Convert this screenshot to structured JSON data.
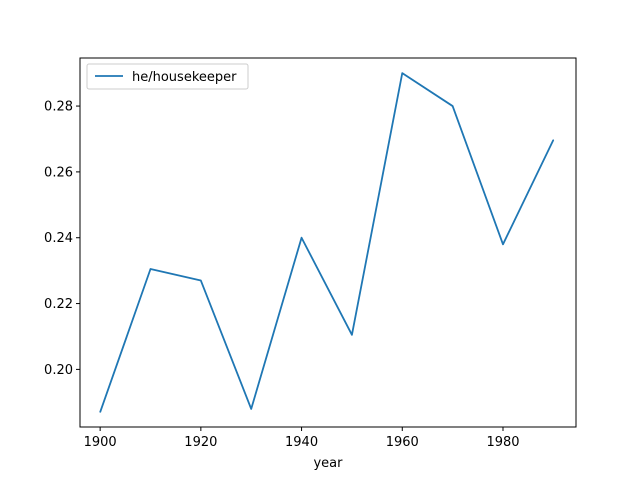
{
  "chart_data": {
    "type": "line",
    "title": "",
    "xlabel": "year",
    "ylabel": "",
    "x": [
      1900,
      1910,
      1920,
      1930,
      1940,
      1950,
      1960,
      1970,
      1980,
      1990
    ],
    "series": [
      {
        "name": "he/housekeeper",
        "color": "#1f77b4",
        "values": [
          0.187,
          0.2305,
          0.227,
          0.188,
          0.24,
          0.2105,
          0.29,
          0.28,
          0.238,
          0.2697
        ]
      }
    ],
    "xlim": [
      1896,
      1994.5
    ],
    "ylim": [
      0.1825,
      0.2946
    ],
    "xticks": [
      1900,
      1920,
      1940,
      1960,
      1980
    ],
    "xtick_labels": [
      "1900",
      "1920",
      "1940",
      "1960",
      "1980"
    ],
    "yticks": [
      0.2,
      0.22,
      0.24,
      0.26,
      0.28
    ],
    "ytick_labels": [
      "0.20",
      "0.22",
      "0.24",
      "0.26",
      "0.28"
    ],
    "grid": false,
    "legend": "upper-left"
  }
}
